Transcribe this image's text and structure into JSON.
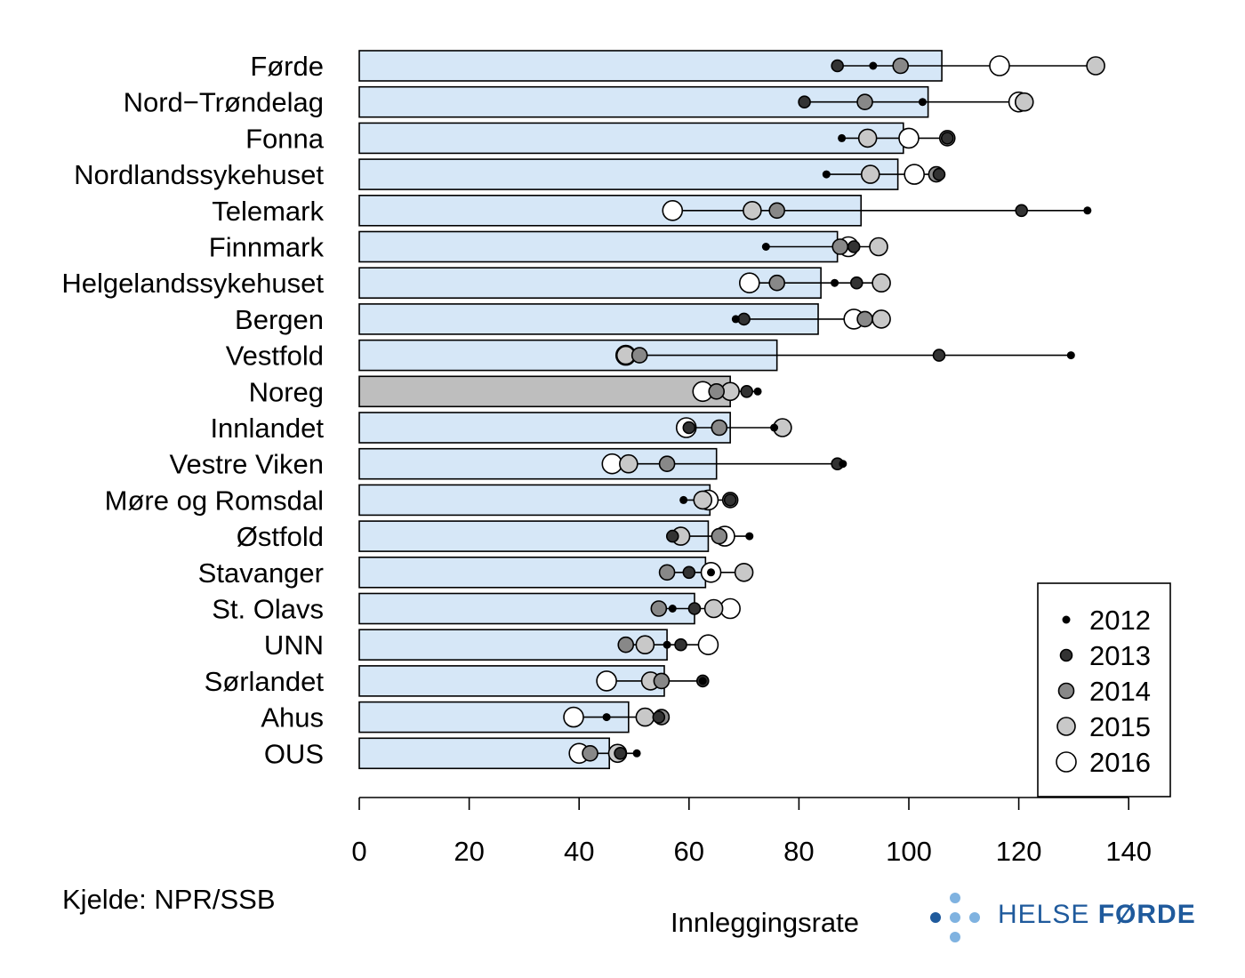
{
  "chart_data": {
    "type": "bar",
    "xlabel": "Innleggingsrate",
    "xlim": [
      0,
      140
    ],
    "xticks": [
      0,
      20,
      40,
      60,
      80,
      100,
      120,
      140
    ],
    "highlight_category": "Noreg",
    "colors": {
      "bar": "#d6e7f7",
      "bar_highlight": "#bebebe",
      "2012": "#000000",
      "2013": "#333333",
      "2014": "#888888",
      "2015": "#c8c8c8",
      "2016": "#ffffff"
    },
    "legend": {
      "position": "bottom-right",
      "entries": [
        "2012",
        "2013",
        "2014",
        "2015",
        "2016"
      ]
    },
    "categories": [
      "Førde",
      "Nord−Trøndelag",
      "Fonna",
      "Nordlandssykehuset",
      "Telemark",
      "Finnmark",
      "Helgelandssykehuset",
      "Bergen",
      "Vestfold",
      "Noreg",
      "Innlandet",
      "Vestre Viken",
      "Møre og Romsdal",
      "Østfold",
      "Stavanger",
      "St. Olavs",
      "UNN",
      "Sørlandet",
      "Ahus",
      "OUS"
    ],
    "values": [
      106,
      103.5,
      99,
      98,
      91.3,
      87,
      84,
      83.5,
      76,
      67.5,
      67.5,
      65,
      63.8,
      63.5,
      63,
      61,
      56,
      55.5,
      49,
      45.5
    ],
    "series": [
      {
        "name": "2012",
        "values": [
          93.5,
          102.5,
          87.8,
          85,
          132.5,
          74,
          86.5,
          68.5,
          129.5,
          72.5,
          75.5,
          88,
          59,
          71,
          64,
          57,
          56,
          62.5,
          45,
          50.5
        ]
      },
      {
        "name": "2013",
        "values": [
          87,
          81,
          107,
          105.5,
          120.5,
          90,
          90.5,
          70,
          105.5,
          70.5,
          60,
          87,
          67.5,
          57,
          60,
          61,
          58.5,
          62.5,
          54.5,
          47.5
        ]
      },
      {
        "name": "2014",
        "values": [
          98.5,
          92,
          107,
          105,
          76,
          87.5,
          76,
          92,
          51,
          65,
          65.5,
          56,
          67.5,
          65.5,
          56,
          54.5,
          48.5,
          55,
          55,
          42
        ]
      },
      {
        "name": "2015",
        "values": [
          134,
          121,
          92.5,
          93,
          71.5,
          94.5,
          95,
          95,
          48.5,
          67.5,
          77,
          49,
          62.5,
          58.5,
          70,
          64.5,
          52,
          53,
          52,
          47
        ]
      },
      {
        "name": "2016",
        "values": [
          116.5,
          120,
          100,
          101,
          57,
          89,
          71,
          90,
          48.5,
          62.5,
          59.5,
          46,
          63.5,
          66.5,
          64,
          67.5,
          63.5,
          45,
          39,
          40
        ]
      }
    ]
  },
  "source_note": "Kjelde: NPR/SSB",
  "logo": {
    "word1": "HELSE",
    "word2": "FØRDE"
  }
}
